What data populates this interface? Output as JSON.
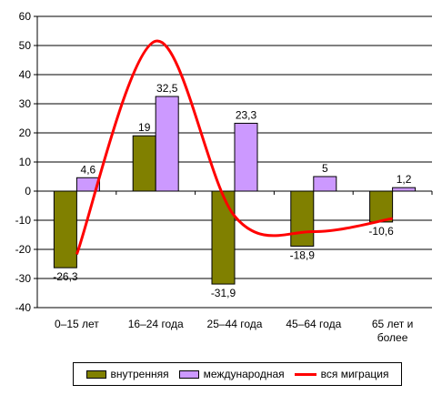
{
  "chart_data": {
    "type": "bar",
    "categories": [
      "0–15 лет",
      "16–24 года",
      "25–44 года",
      "45–64 года",
      "65 лет и более"
    ],
    "category_lines": [
      [
        "0–15 лет"
      ],
      [
        "16–24 года"
      ],
      [
        "25–44 года"
      ],
      [
        "45–64 года"
      ],
      [
        "65 лет и",
        "более"
      ]
    ],
    "series": [
      {
        "name": "внутренняя",
        "type": "bar",
        "color": "#808000",
        "values": [
          -26.3,
          19,
          -31.9,
          -18.9,
          -10.6
        ],
        "labels": [
          "-26,3",
          "19",
          "-31,9",
          "-18,9",
          "-10,6"
        ]
      },
      {
        "name": "международная",
        "type": "bar",
        "color": "#CC99FF",
        "values": [
          4.6,
          32.5,
          23.3,
          5,
          1.2
        ],
        "labels": [
          "4,6",
          "32,5",
          "23,3",
          "5",
          "1,2"
        ]
      },
      {
        "name": "вся миграция",
        "type": "line",
        "color": "#FF0000",
        "values": [
          -21.7,
          51.5,
          -8.6,
          -13.9,
          -9.4
        ]
      }
    ],
    "ylim": [
      -40,
      60
    ],
    "yticks": [
      -40,
      -30,
      -20,
      -10,
      0,
      10,
      20,
      30,
      40,
      50,
      60
    ],
    "grid": true,
    "legend_position": "bottom"
  }
}
